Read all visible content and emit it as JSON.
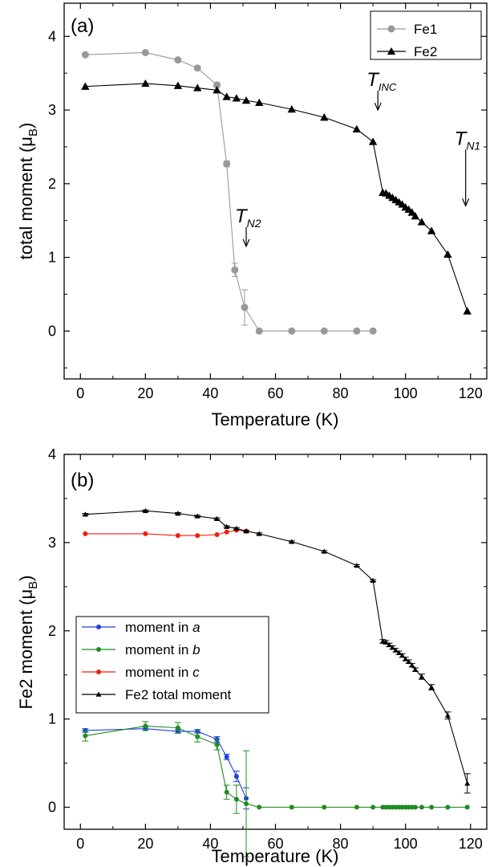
{
  "chart_data": [
    {
      "panel_label": "(a)",
      "type": "line",
      "xlabel": "Temperature (K)",
      "ylabel": "total moment (μB)",
      "ylabel_parts": {
        "main": "total moment (",
        "mu": "μ",
        "sub": "B",
        "close": ")"
      },
      "xlim": [
        -5,
        125
      ],
      "ylim": [
        -0.65,
        4.45
      ],
      "xticks": [
        0,
        20,
        40,
        60,
        80,
        100,
        120
      ],
      "yticks": [
        0,
        1,
        2,
        3,
        4
      ],
      "legend": {
        "position": "top-right"
      },
      "series": [
        {
          "name": "Fe1",
          "color": "#999999",
          "marker": "circle",
          "x": [
            1.5,
            20,
            30,
            36,
            42,
            45,
            47.5,
            50.5,
            55,
            65,
            75,
            85,
            90
          ],
          "y": [
            3.75,
            3.78,
            3.68,
            3.57,
            3.34,
            2.27,
            0.83,
            0.32,
            0.0,
            0.0,
            0.0,
            0.0,
            0.0
          ],
          "err": [
            0.02,
            0.02,
            0.02,
            0.02,
            0.03,
            0.04,
            0.09,
            0.24,
            0.0,
            0.0,
            0.0,
            0.0,
            0.0
          ]
        },
        {
          "name": "Fe2",
          "color": "#000000",
          "marker": "triangle",
          "x": [
            1.5,
            20,
            30,
            36,
            42,
            45,
            48,
            51,
            55,
            65,
            75,
            85,
            90,
            93,
            94,
            95,
            96,
            97,
            98,
            99,
            100,
            101,
            102,
            103,
            105,
            108,
            113,
            119
          ],
          "y": [
            3.32,
            3.36,
            3.33,
            3.3,
            3.27,
            3.18,
            3.16,
            3.13,
            3.1,
            3.01,
            2.9,
            2.74,
            2.57,
            1.88,
            1.87,
            1.84,
            1.81,
            1.78,
            1.75,
            1.72,
            1.68,
            1.65,
            1.61,
            1.56,
            1.48,
            1.36,
            1.04,
            0.27
          ]
        }
      ],
      "annotations": [
        {
          "main": "T",
          "sub": "N2",
          "x": 51,
          "y": 1.15
        },
        {
          "main": "T",
          "sub": "INC",
          "x": 91.5,
          "y": 3.0
        },
        {
          "main": "T",
          "sub": "N1",
          "x": 118.5,
          "y": 1.7
        }
      ]
    },
    {
      "panel_label": "(b)",
      "type": "line",
      "xlabel": "Temperature (K)",
      "ylabel": "Fe2 moment (μB)",
      "ylabel_parts": {
        "main": "Fe2 moment (",
        "mu": "μ",
        "sub": "B",
        "close": ")"
      },
      "xlim": [
        -5,
        125
      ],
      "ylim": [
        -0.25,
        4.0
      ],
      "xticks": [
        0,
        20,
        40,
        60,
        80,
        100,
        120
      ],
      "yticks": [
        0,
        1,
        2,
        3,
        4
      ],
      "legend": {
        "position": "middle-left"
      },
      "series": [
        {
          "name": "moment in ",
          "name_italic": "a",
          "color": "#1f3fe0",
          "marker": "circle",
          "x": [
            1.5,
            20,
            30,
            36,
            42,
            45,
            48,
            51
          ],
          "y": [
            0.87,
            0.89,
            0.86,
            0.86,
            0.77,
            0.57,
            0.35,
            0.1
          ],
          "err": [
            0.02,
            0.02,
            0.02,
            0.02,
            0.03,
            0.03,
            0.06,
            0.12
          ]
        },
        {
          "name": "moment in ",
          "name_italic": "b",
          "color": "#1f8c1f",
          "marker": "circle",
          "x": [
            1.5,
            20,
            30,
            36,
            42,
            45,
            48,
            51,
            55,
            65,
            75,
            85,
            90,
            93,
            94,
            95,
            96,
            97,
            98,
            99,
            100,
            101,
            102,
            103,
            105,
            108,
            113,
            119
          ],
          "y": [
            0.81,
            0.92,
            0.9,
            0.8,
            0.71,
            0.17,
            0.09,
            0.04,
            0,
            0,
            0,
            0,
            0,
            0,
            0,
            0,
            0,
            0,
            0,
            0,
            0,
            0,
            0,
            0,
            0,
            0,
            0,
            0
          ],
          "err": [
            0.06,
            0.05,
            0.06,
            0.06,
            0.06,
            0.08,
            0.16,
            0.6,
            0,
            0,
            0,
            0,
            0,
            0,
            0,
            0,
            0,
            0,
            0,
            0,
            0,
            0,
            0,
            0,
            0,
            0,
            0,
            0
          ]
        },
        {
          "name": "moment in ",
          "name_italic": "c",
          "color": "#f01f0f",
          "marker": "circle",
          "x": [
            1.5,
            20,
            30,
            36,
            42,
            45,
            48,
            51
          ],
          "y": [
            3.1,
            3.1,
            3.08,
            3.08,
            3.09,
            3.12,
            3.14,
            3.13
          ]
        },
        {
          "name": "Fe2 total moment",
          "color": "#000000",
          "marker": "triangle",
          "x": [
            1.5,
            20,
            30,
            36,
            42,
            45,
            48,
            51,
            55,
            65,
            75,
            85,
            90,
            93,
            94,
            95,
            96,
            97,
            98,
            99,
            100,
            101,
            102,
            103,
            105,
            108,
            113,
            119
          ],
          "y": [
            3.32,
            3.36,
            3.33,
            3.3,
            3.27,
            3.18,
            3.16,
            3.13,
            3.1,
            3.01,
            2.9,
            2.74,
            2.57,
            1.88,
            1.87,
            1.84,
            1.81,
            1.78,
            1.75,
            1.72,
            1.68,
            1.65,
            1.61,
            1.56,
            1.48,
            1.36,
            1.04,
            0.27
          ],
          "err": [
            0.01,
            0.01,
            0.01,
            0.01,
            0.01,
            0.01,
            0.01,
            0.01,
            0.01,
            0.01,
            0.01,
            0.01,
            0.01,
            0.02,
            0.02,
            0.02,
            0.02,
            0.02,
            0.02,
            0.02,
            0.02,
            0.02,
            0.02,
            0.02,
            0.03,
            0.03,
            0.04,
            0.11
          ]
        }
      ]
    }
  ]
}
